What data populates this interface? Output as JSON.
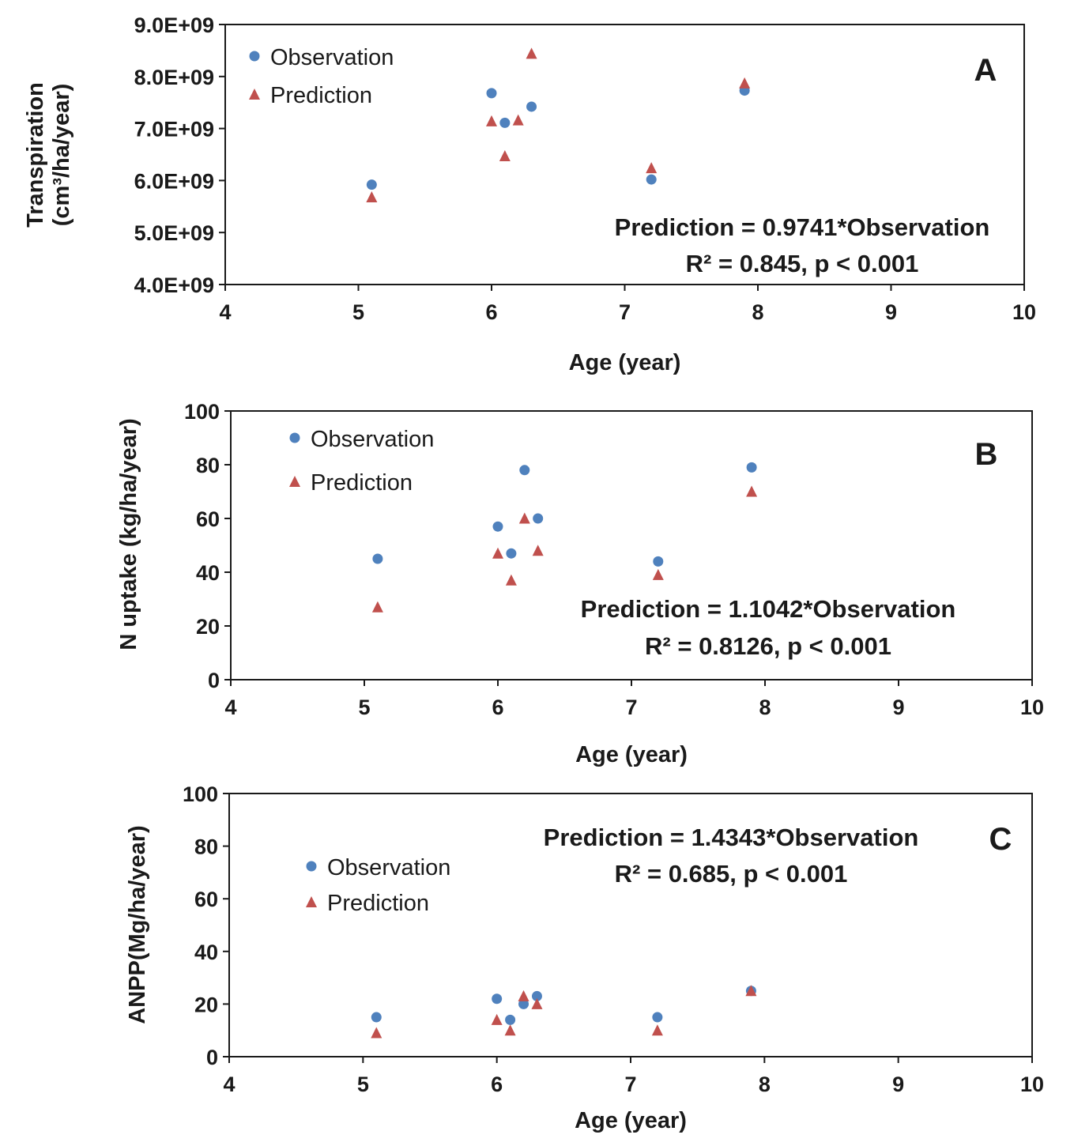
{
  "chart_data": [
    {
      "type": "scatter",
      "panel_label": "A",
      "xlabel": "Age (year)",
      "ylabel_line1": "Transpiration",
      "ylabel_line2": "(cm³/ha/year)",
      "xlim": [
        4,
        10
      ],
      "ylim": [
        4000000000,
        9000000000
      ],
      "x_ticks": [
        4,
        5,
        6,
        7,
        8,
        9,
        10
      ],
      "x_tick_labels": [
        "4",
        "5",
        "6",
        "7",
        "8",
        "9",
        "10"
      ],
      "y_ticks": [
        4000000000,
        5000000000,
        6000000000,
        7000000000,
        8000000000,
        9000000000
      ],
      "y_tick_labels": [
        "4.0E+09",
        "5.0E+09",
        "6.0E+09",
        "7.0E+09",
        "8.0E+09",
        "9.0E+09"
      ],
      "legend": {
        "placement": "top-left",
        "entries": [
          "Observation",
          "Prediction"
        ]
      },
      "annotation": {
        "line1": "Prediction = 0.9741*Observation",
        "line2": "R² = 0.845, p < 0.001",
        "placement": "bottom-right"
      },
      "grid": false,
      "series": [
        {
          "name": "Observation",
          "marker": "circle",
          "color": "#4f81bd",
          "x": [
            5.1,
            6.0,
            6.1,
            6.3,
            7.2,
            7.9
          ],
          "y": [
            5920000000,
            7680000000,
            7110000000,
            7420000000,
            6020000000,
            7730000000
          ]
        },
        {
          "name": "Prediction",
          "marker": "triangle",
          "color": "#c0504d",
          "x": [
            5.1,
            6.0,
            6.1,
            6.2,
            6.3,
            7.2,
            7.9
          ],
          "y": [
            5680000000,
            7140000000,
            6470000000,
            7160000000,
            8440000000,
            6240000000,
            7870000000
          ]
        }
      ]
    },
    {
      "type": "scatter",
      "panel_label": "B",
      "xlabel": "Age (year)",
      "ylabel_line1": "N uptake (kg/ha/year)",
      "ylabel_line2": "",
      "xlim": [
        4,
        10
      ],
      "ylim": [
        0,
        100
      ],
      "x_ticks": [
        4,
        5,
        6,
        7,
        8,
        9,
        10
      ],
      "x_tick_labels": [
        "4",
        "5",
        "6",
        "7",
        "8",
        "9",
        "10"
      ],
      "y_ticks": [
        0,
        20,
        40,
        60,
        80,
        100
      ],
      "y_tick_labels": [
        "0",
        "20",
        "40",
        "60",
        "80",
        "100"
      ],
      "legend": {
        "placement": "top-left",
        "entries": [
          "Observation",
          "Prediction"
        ]
      },
      "annotation": {
        "line1": "Prediction = 1.1042*Observation",
        "line2": "R² = 0.8126, p < 0.001",
        "placement": "bottom-right"
      },
      "grid": false,
      "series": [
        {
          "name": "Observation",
          "marker": "circle",
          "color": "#4f81bd",
          "x": [
            5.1,
            6.0,
            6.1,
            6.2,
            6.3,
            7.2,
            7.9
          ],
          "y": [
            45,
            57,
            47,
            78,
            60,
            44,
            79
          ]
        },
        {
          "name": "Prediction",
          "marker": "triangle",
          "color": "#c0504d",
          "x": [
            5.1,
            6.0,
            6.1,
            6.2,
            6.3,
            7.2,
            7.9
          ],
          "y": [
            27,
            47,
            37,
            60,
            48,
            39,
            70
          ]
        }
      ]
    },
    {
      "type": "scatter",
      "panel_label": "C",
      "xlabel": "Age (year)",
      "ylabel_line1": "ANPP(Mg/ha/year)",
      "ylabel_line2": "",
      "xlim": [
        4,
        10
      ],
      "ylim": [
        0,
        100
      ],
      "x_ticks": [
        4,
        5,
        6,
        7,
        8,
        9,
        10
      ],
      "x_tick_labels": [
        "4",
        "5",
        "6",
        "7",
        "8",
        "9",
        "10"
      ],
      "y_ticks": [
        0,
        20,
        40,
        60,
        80,
        100
      ],
      "y_tick_labels": [
        "0",
        "20",
        "40",
        "60",
        "80",
        "100"
      ],
      "legend": {
        "placement": "center-left",
        "entries": [
          "Observation",
          "Prediction"
        ]
      },
      "annotation": {
        "line1": "Prediction = 1.4343*Observation",
        "line2": "R² = 0.685, p < 0.001",
        "placement": "top-center"
      },
      "grid": false,
      "series": [
        {
          "name": "Observation",
          "marker": "circle",
          "color": "#4f81bd",
          "x": [
            5.1,
            6.0,
            6.1,
            6.2,
            6.3,
            7.2,
            7.9
          ],
          "y": [
            15,
            22,
            14,
            20,
            23,
            15,
            25
          ]
        },
        {
          "name": "Prediction",
          "marker": "triangle",
          "color": "#c0504d",
          "x": [
            5.1,
            6.0,
            6.1,
            6.2,
            6.3,
            7.2,
            7.9
          ],
          "y": [
            9,
            14,
            10,
            23,
            20,
            10,
            25
          ]
        }
      ]
    }
  ]
}
